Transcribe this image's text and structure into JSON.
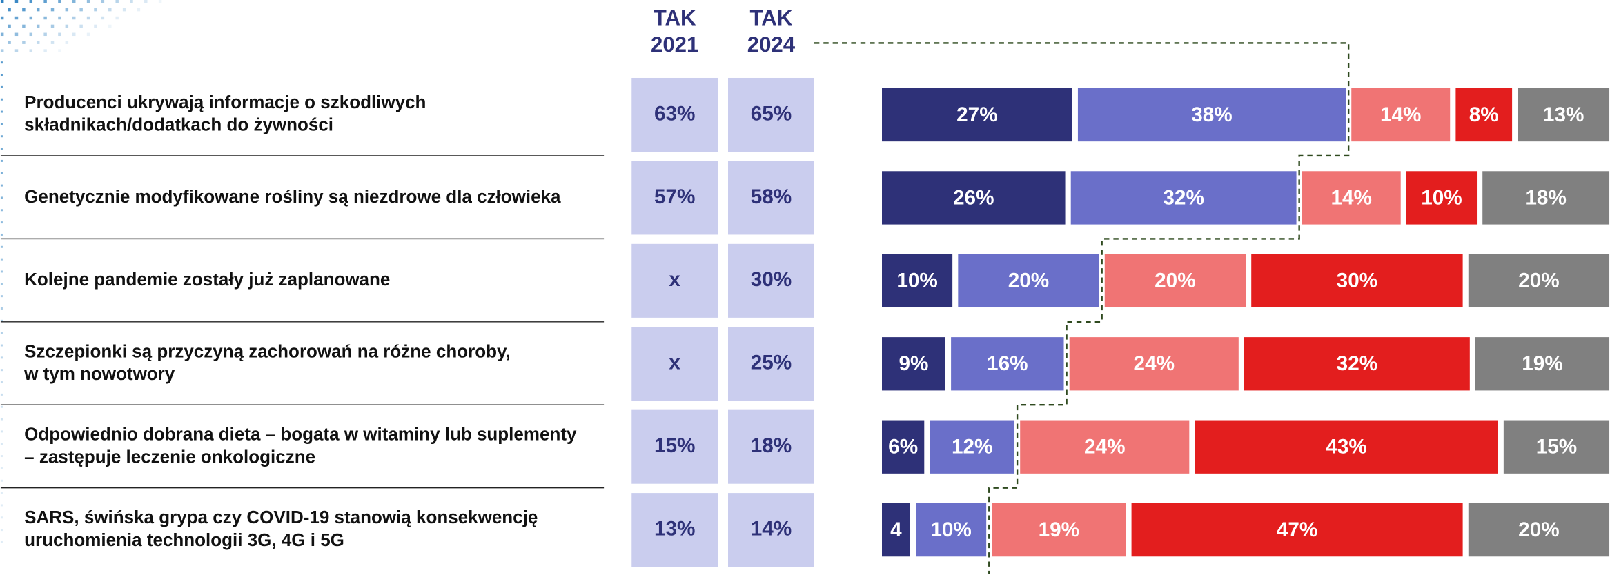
{
  "chart_data": {
    "type": "stacked-barh",
    "categories": [
      [
        "Producenci ukrywają informacje o szkodliwych",
        "składnikach/dodatkach do żywności"
      ],
      [
        "Genetycznie modyfikowane rośliny są niezdrowe dla człowieka"
      ],
      [
        "Kolejne pandemie zostały już zaplanowane"
      ],
      [
        "Szczepionki są przyczyną zachorowań na różne choroby,",
        "w tym nowotwory"
      ],
      [
        "Odpowiednio dobrana dieta – bogata w witaminy lub suplementy",
        "– zastępuje leczenie onkologiczne"
      ],
      [
        "SARS, świńska grypa czy COVID-19 stanowią konsekwencję",
        "uruchomienia technologii 3G, 4G i 5G"
      ]
    ],
    "xlim": [
      0,
      100
    ],
    "series": [
      {
        "color": "#2e3178",
        "values": [
          27,
          26,
          10,
          9,
          6,
          4
        ],
        "value_labels": [
          "27%",
          "26%",
          "10%",
          "9%",
          "6%",
          "4"
        ]
      },
      {
        "color": "#6a6fc9",
        "values": [
          38,
          32,
          20,
          16,
          12,
          10
        ],
        "value_labels": [
          "38%",
          "32%",
          "20%",
          "16%",
          "12%",
          "10%"
        ]
      },
      {
        "color": "#f07474",
        "values": [
          14,
          14,
          20,
          24,
          24,
          19
        ],
        "value_labels": [
          "14%",
          "14%",
          "20%",
          "24%",
          "24%",
          "19%"
        ]
      },
      {
        "color": "#e31e1e",
        "values": [
          8,
          10,
          30,
          32,
          43,
          47
        ],
        "value_labels": [
          "8%",
          "10%",
          "30%",
          "32%",
          "43%",
          "47%"
        ]
      },
      {
        "color": "#808080",
        "values": [
          13,
          18,
          20,
          19,
          15,
          20
        ],
        "value_labels": [
          "13%",
          "18%",
          "20%",
          "19%",
          "15%",
          "20%"
        ]
      }
    ]
  },
  "table": {
    "columns": [
      [
        "TAK",
        "2021"
      ],
      [
        "TAK",
        "2024"
      ]
    ],
    "rows": [
      [
        "63%",
        "65%"
      ],
      [
        "57%",
        "58%"
      ],
      [
        "x",
        "30%"
      ],
      [
        "x",
        "25%"
      ],
      [
        "15%",
        "18%"
      ],
      [
        "13%",
        "14%"
      ]
    ]
  }
}
